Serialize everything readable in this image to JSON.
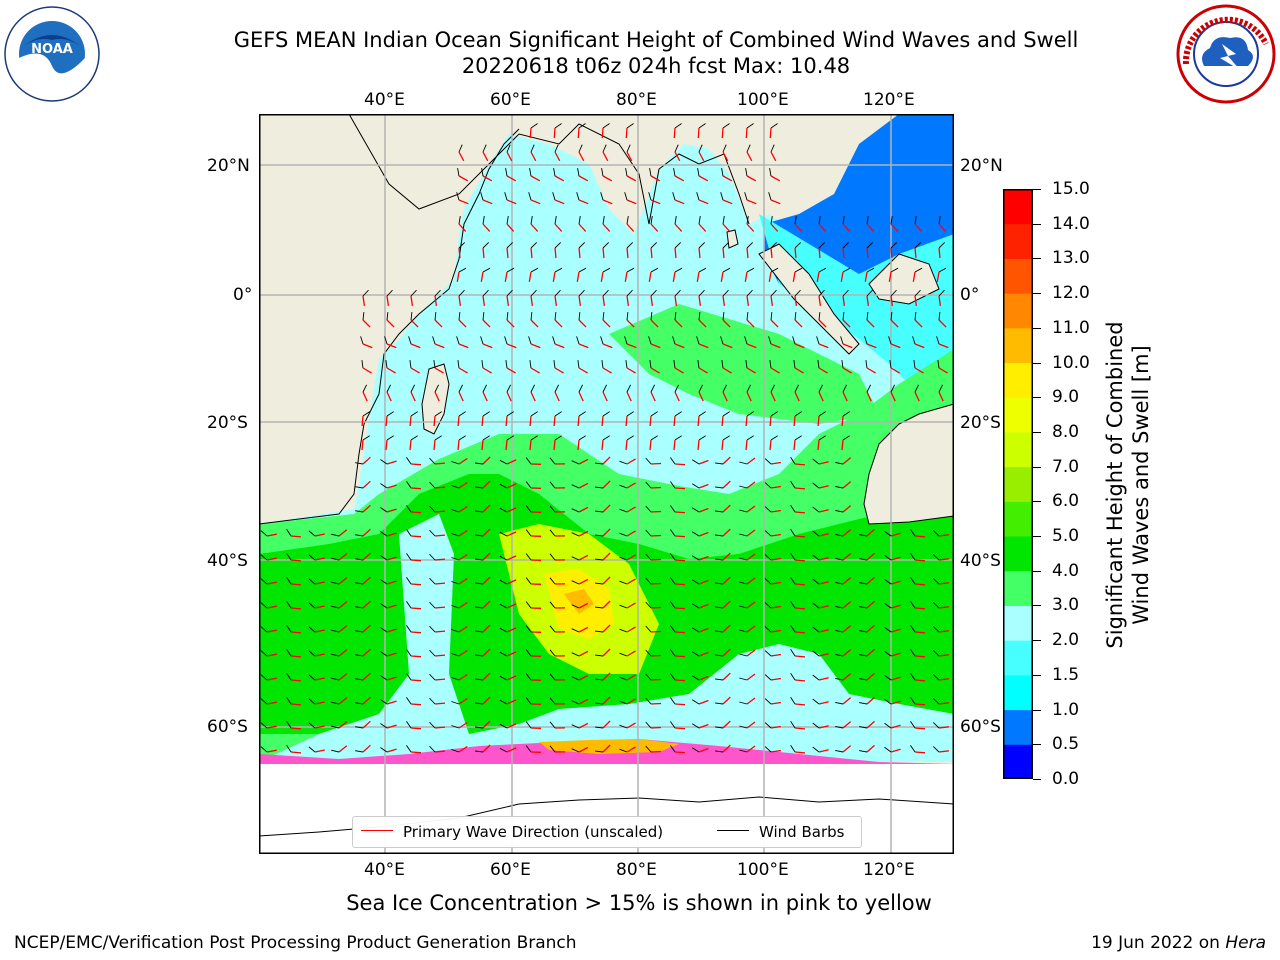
{
  "title": {
    "line1": "GEFS MEAN Indian Ocean Significant Height of Combined Wind Waves and Swell",
    "line2": "20220618 t06z 024h fcst    Max: 10.48"
  },
  "logos": {
    "left": {
      "name": "noaa-logo",
      "text": "NOAA"
    },
    "right": {
      "name": "national-weather-service-logo"
    }
  },
  "map": {
    "projection": "equirectangular",
    "lon_range": [
      20,
      130
    ],
    "lat_range": [
      -74,
      28
    ],
    "lon_ticks": [
      {
        "value": 40,
        "label": "40°E"
      },
      {
        "value": 60,
        "label": "60°E"
      },
      {
        "value": 80,
        "label": "80°E"
      },
      {
        "value": 100,
        "label": "100°E"
      },
      {
        "value": 120,
        "label": "120°E"
      }
    ],
    "lat_ticks": [
      {
        "value": 20,
        "label": "20°N"
      },
      {
        "value": 0,
        "label": "0°"
      },
      {
        "value": -20,
        "label": "20°S"
      },
      {
        "value": -40,
        "label": "40°S"
      },
      {
        "value": -60,
        "label": "60°S"
      }
    ],
    "grid": true,
    "colors": {
      "land": "#efedde",
      "coast": "#000000",
      "grid": "#b3b3b3",
      "sea_ice": "#ffffff"
    }
  },
  "colorbar": {
    "title_line1": "Significant Height of Combined",
    "title_line2": "Wind Waves and Swell [m]",
    "levels": [
      "0.0",
      "0.5",
      "1.0",
      "1.5",
      "2.0",
      "3.0",
      "4.0",
      "5.0",
      "6.0",
      "7.0",
      "8.0",
      "9.0",
      "10.0",
      "11.0",
      "12.0",
      "13.0",
      "14.0",
      "15.0"
    ],
    "colors": [
      "#0000ff",
      "#0078ff",
      "#00ffff",
      "#47ffff",
      "#aaffff",
      "#44ff66",
      "#00e600",
      "#44ee00",
      "#99ee00",
      "#ccff00",
      "#eeff00",
      "#ffee00",
      "#ffbb00",
      "#ff8800",
      "#ff5500",
      "#ff2200",
      "#ff0000"
    ]
  },
  "legend": {
    "wave_label": "Primary Wave Direction (unscaled)",
    "wave_color": "#ff0000",
    "barb_label": "Wind Barbs",
    "barb_color": "#000000"
  },
  "footnote": "Sea Ice Concentration > 15% is shown in pink to yellow",
  "footer": {
    "left": "NCEP/EMC/Verification Post Processing Product Generation Branch",
    "right_date": "19 Jun 2022 on ",
    "right_host": "Hera"
  }
}
